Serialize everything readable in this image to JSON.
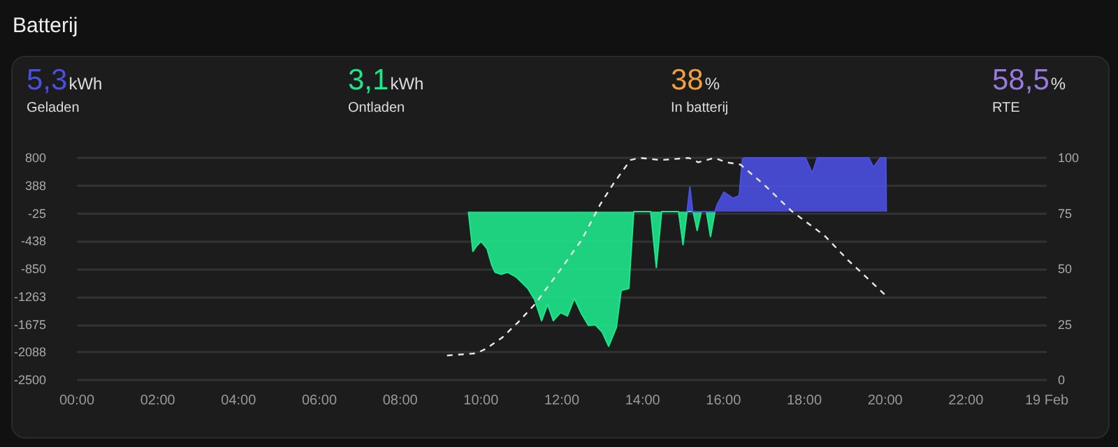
{
  "chart_data": {
    "type": "area",
    "title": "Batterij",
    "annotations": [
      "5,3",
      "kWh",
      "Geladen",
      "3,1",
      "kWh",
      "Ontladen",
      "38",
      "%",
      "In batterij",
      "58,5",
      "%",
      "RTE"
    ],
    "xlim": [
      0,
      24
    ],
    "xticks": [
      {
        "value": 0,
        "label": "00:00"
      },
      {
        "value": 2,
        "label": "02:00"
      },
      {
        "value": 4,
        "label": "04:00"
      },
      {
        "value": 6,
        "label": "06:00"
      },
      {
        "value": 8,
        "label": "08:00"
      },
      {
        "value": 10,
        "label": "10:00"
      },
      {
        "value": 12,
        "label": "12:00"
      },
      {
        "value": 14,
        "label": "14:00"
      },
      {
        "value": 16,
        "label": "16:00"
      },
      {
        "value": 18,
        "label": "18:00"
      },
      {
        "value": 20,
        "label": "20:00"
      },
      {
        "value": 22,
        "label": "22:00"
      },
      {
        "value": 24,
        "label": "19 Feb"
      }
    ],
    "ylim": [
      -2500,
      800
    ],
    "yticks": [
      {
        "value": 800,
        "label": "800"
      },
      {
        "value": 387.5,
        "label": "388"
      },
      {
        "value": -25,
        "label": "-25"
      },
      {
        "value": -437.5,
        "label": "-438"
      },
      {
        "value": -850,
        "label": "-850"
      },
      {
        "value": -1262.5,
        "label": "-1263"
      },
      {
        "value": -1675,
        "label": "-1675"
      },
      {
        "value": -2087.5,
        "label": "-2088"
      },
      {
        "value": -2500,
        "label": "-2500"
      }
    ],
    "y2lim": [
      0,
      100
    ],
    "y2ticks": [
      0,
      25,
      50,
      75,
      100
    ],
    "grid": "y",
    "marker": "none",
    "series": [
      {
        "color": "#1ee68a",
        "x": [
          9.69,
          9.8,
          9.88,
          10,
          10.15,
          10.27,
          10.35,
          10.5,
          10.66,
          10.87,
          11.16,
          11.33,
          11.5,
          11.65,
          11.79,
          11.97,
          12.14,
          12.31,
          12.49,
          12.66,
          12.83,
          13,
          13.16,
          13.35,
          13.47,
          13.66,
          13.78,
          14.2,
          14.34,
          14.47,
          14.89,
          15,
          15.1,
          15.25,
          15.35,
          15.45,
          15.58,
          15.68,
          15.79
        ],
        "values": [
          0,
          -590,
          -520,
          -440,
          -550,
          -800,
          -900,
          -930,
          -900,
          -970,
          -1140,
          -1310,
          -1620,
          -1380,
          -1620,
          -1500,
          -1550,
          -1290,
          -1520,
          -1690,
          -1680,
          -1790,
          -2000,
          -1720,
          -1170,
          -1140,
          0,
          0,
          -830,
          0,
          0,
          -490,
          0,
          0,
          -280,
          0,
          0,
          -370,
          0
        ]
      },
      {
        "color": "#4a4fe0",
        "x": [
          15.1,
          15.17,
          15.24,
          15.79,
          15.84,
          16.01,
          16.24,
          16.39,
          16.47,
          16.53,
          18.03,
          18.2,
          18.32,
          19.6,
          19.71,
          19.88,
          20.02,
          20.03
        ],
        "values": [
          0,
          370,
          0,
          0,
          100,
          290,
          200,
          240,
          790,
          800,
          800,
          570,
          800,
          800,
          660,
          800,
          800,
          0
        ]
      },
      {
        "type": "line",
        "axis": "y2",
        "color": "#e8e8e8",
        "line_style": "dashed",
        "x": [
          9.16,
          9.88,
          10.12,
          10.52,
          10.92,
          11.33,
          11.9,
          12.49,
          12.95,
          13.3,
          13.7,
          13.93,
          14.45,
          15.14,
          15.38,
          15.78,
          16.07,
          16.42,
          17,
          17.69,
          18.5,
          19.08,
          20.02
        ],
        "values": [
          11,
          12,
          14,
          19,
          26,
          34,
          48,
          63,
          79,
          89,
          99,
          100,
          99,
          100,
          98,
          100,
          98,
          97,
          88,
          76,
          65,
          54,
          38
        ]
      }
    ]
  }
}
